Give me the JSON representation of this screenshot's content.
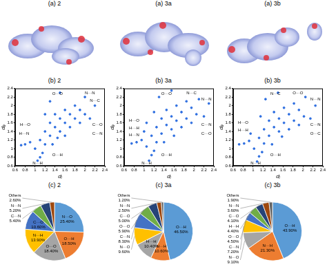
{
  "surfaces": [
    {
      "title": "(a) 2"
    },
    {
      "title": "(a) 3a"
    },
    {
      "title": "(a) 3b"
    }
  ],
  "chart_data": [
    {
      "type": "scatter",
      "title": "(b) 2",
      "x_label": "dᵢ",
      "y_label": "dₑ",
      "xlim": [
        0.6,
        2.4
      ],
      "xticks": [
        0.6,
        0.8,
        1,
        1.2,
        1.4,
        1.6,
        1.8,
        2,
        2.2,
        2.4
      ],
      "ylim": [
        0.6,
        2.4
      ],
      "yticks": [
        0.6,
        0.8,
        1,
        1.2,
        1.4,
        1.6,
        1.8,
        2,
        2.2,
        2.4
      ],
      "grid": false,
      "color": "#2f6fe0",
      "x": [
        0.72,
        0.8,
        0.9,
        1.05,
        1.1,
        1.15,
        1.0,
        1.1,
        1.2,
        1.2,
        1.3,
        1.3,
        1.4,
        1.4,
        1.5,
        1.5,
        1.6,
        1.6,
        1.7,
        1.7,
        1.8,
        1.8,
        1.9,
        1.9,
        2.0,
        2.0,
        2.1,
        2.2,
        1.3,
        1.5,
        1.2,
        1.6,
        1.35,
        1.45
      ],
      "values": [
        1.08,
        1.1,
        1.15,
        0.72,
        0.8,
        0.9,
        1.0,
        1.2,
        1.1,
        1.4,
        1.3,
        1.6,
        1.5,
        1.8,
        1.4,
        1.7,
        1.6,
        1.9,
        1.5,
        1.8,
        1.7,
        2.0,
        1.6,
        1.9,
        1.8,
        2.2,
        1.7,
        2.0,
        2.1,
        2.3,
        1.8,
        1.3,
        1.1,
        1.25
      ],
      "annotations": [
        {
          "text": "O···O",
          "x": 1.45,
          "y": 2.28
        },
        {
          "text": "N···N",
          "x": 2.1,
          "y": 2.3
        },
        {
          "text": "N···C",
          "x": 2.2,
          "y": 2.12
        },
        {
          "text": "H···O",
          "x": 0.8,
          "y": 1.55
        },
        {
          "text": "H···N",
          "x": 0.78,
          "y": 1.35
        },
        {
          "text": "C···O",
          "x": 2.25,
          "y": 1.55
        },
        {
          "text": "C···N",
          "x": 2.25,
          "y": 1.35
        },
        {
          "text": "N···H",
          "x": 1.05,
          "y": 0.66
        },
        {
          "text": "O···H",
          "x": 1.45,
          "y": 0.85
        }
      ]
    },
    {
      "type": "scatter",
      "title": "(b) 3a",
      "x_label": "dᵢ",
      "y_label": "dₑ",
      "xlim": [
        0.6,
        2.4
      ],
      "xticks": [
        0.6,
        0.8,
        1,
        1.2,
        1.4,
        1.6,
        1.8,
        2,
        2.2,
        2.4
      ],
      "ylim": [
        0.6,
        2.4
      ],
      "yticks": [
        0.6,
        0.8,
        1,
        1.2,
        1.4,
        1.6,
        1.8,
        2,
        2.2,
        2.4
      ],
      "grid": false,
      "color": "#2f6fe0",
      "x": [
        0.75,
        0.85,
        0.95,
        1.1,
        1.15,
        1.2,
        1.05,
        1.15,
        1.25,
        1.25,
        1.35,
        1.35,
        1.45,
        1.45,
        1.55,
        1.55,
        1.65,
        1.65,
        1.75,
        1.75,
        1.85,
        1.85,
        1.95,
        1.95,
        2.05,
        2.1,
        2.2,
        2.3,
        1.3,
        1.55,
        1.2,
        1.6,
        1.4,
        1.0,
        1.05
      ],
      "values": [
        1.12,
        1.15,
        1.2,
        0.72,
        0.85,
        0.95,
        1.05,
        1.3,
        1.15,
        1.5,
        1.35,
        1.7,
        1.55,
        1.9,
        1.45,
        1.75,
        1.65,
        2.0,
        1.5,
        1.85,
        1.7,
        2.1,
        1.6,
        1.95,
        1.8,
        2.15,
        1.75,
        2.05,
        2.2,
        2.35,
        1.85,
        1.3,
        1.15,
        1.4,
        1.6
      ],
      "annotations": [
        {
          "text": "O···O",
          "x": 1.45,
          "y": 2.28
        },
        {
          "text": "N···C",
          "x": 1.95,
          "y": 2.3
        },
        {
          "text": "N···N",
          "x": 2.25,
          "y": 2.15
        },
        {
          "text": "H···O",
          "x": 0.8,
          "y": 1.65
        },
        {
          "text": "H···H",
          "x": 0.8,
          "y": 1.48
        },
        {
          "text": "H···N",
          "x": 0.8,
          "y": 1.31
        },
        {
          "text": "C···N",
          "x": 2.25,
          "y": 1.55
        },
        {
          "text": "C···O",
          "x": 2.25,
          "y": 1.35
        },
        {
          "text": "N···H",
          "x": 1.05,
          "y": 0.66
        },
        {
          "text": "O···H",
          "x": 1.45,
          "y": 0.85
        }
      ]
    },
    {
      "type": "scatter",
      "title": "(b) 3b",
      "x_label": "dᵢ",
      "y_label": "dₑ",
      "xlim": [
        0.6,
        2.4
      ],
      "xticks": [
        0.6,
        0.8,
        1,
        1.2,
        1.4,
        1.6,
        1.8,
        2,
        2.2,
        2.4
      ],
      "ylim": [
        0.6,
        2.4
      ],
      "yticks": [
        0.6,
        0.8,
        1,
        1.2,
        1.4,
        1.6,
        1.8,
        2,
        2.2,
        2.4
      ],
      "grid": false,
      "color": "#2f6fe0",
      "x": [
        0.72,
        0.82,
        0.92,
        1.08,
        1.12,
        1.18,
        1.02,
        1.12,
        1.22,
        1.22,
        1.32,
        1.32,
        1.42,
        1.42,
        1.52,
        1.52,
        1.62,
        1.62,
        1.72,
        1.72,
        1.82,
        1.82,
        1.92,
        1.92,
        2.02,
        2.05,
        2.15,
        2.25,
        1.25,
        1.5,
        1.15,
        1.58,
        1.38,
        0.95
      ],
      "values": [
        1.1,
        1.12,
        1.18,
        0.7,
        0.82,
        0.92,
        1.0,
        1.25,
        1.12,
        1.45,
        1.3,
        1.65,
        1.5,
        1.85,
        1.4,
        1.7,
        1.6,
        1.95,
        1.45,
        1.8,
        1.65,
        2.05,
        1.55,
        1.9,
        1.75,
        2.2,
        1.7,
        2.0,
        2.15,
        2.3,
        1.75,
        1.28,
        1.1,
        1.35
      ],
      "annotations": [
        {
          "text": "N···C",
          "x": 1.45,
          "y": 2.28
        },
        {
          "text": "O···O",
          "x": 1.9,
          "y": 2.3
        },
        {
          "text": "N···N",
          "x": 2.25,
          "y": 2.15
        },
        {
          "text": "H···O",
          "x": 0.8,
          "y": 1.6
        },
        {
          "text": "H···H",
          "x": 0.8,
          "y": 1.43
        },
        {
          "text": "C···N",
          "x": 2.25,
          "y": 1.55
        },
        {
          "text": "O···C",
          "x": 2.25,
          "y": 1.35
        },
        {
          "text": "N···H",
          "x": 1.05,
          "y": 0.66
        },
        {
          "text": "O···H",
          "x": 1.45,
          "y": 0.85
        }
      ]
    },
    {
      "type": "pie",
      "title": "(c) 2",
      "data_labels": true,
      "categories": [
        "N···O",
        "O···H",
        "O···O",
        "N···H",
        "C···O",
        "C···N",
        "N···N",
        "Others"
      ],
      "values": [
        25.4,
        18.5,
        18.4,
        13.9,
        10.6,
        5.4,
        5.2,
        2.6
      ],
      "value_labels": [
        "25.40%",
        "18.50%",
        "18.40%",
        "13.90%",
        "10.60%",
        "5.40%",
        "5.20%",
        "2.60%"
      ],
      "colors": [
        "#5b9bd5",
        "#ed7d31",
        "#a5a5a5",
        "#ffc000",
        "#4472c4",
        "#70ad47",
        "#264478",
        "#9e480e"
      ]
    },
    {
      "type": "pie",
      "title": "(c) 3a",
      "data_labels": true,
      "categories": [
        "O···H",
        "N···H",
        "H···H",
        "N···O",
        "C···N",
        "O···O",
        "C···O",
        "N···N",
        "Others"
      ],
      "values": [
        46.5,
        10.6,
        10.4,
        9.6,
        8.3,
        5.9,
        5.0,
        2.5,
        1.2
      ],
      "value_labels": [
        "46.50%",
        "10.60%",
        "10.40%",
        "9.60%",
        "8.30%",
        "5.90%",
        "5.00%",
        "2.50%",
        "1.20%"
      ],
      "colors": [
        "#5b9bd5",
        "#ed7d31",
        "#a5a5a5",
        "#ffc000",
        "#4472c4",
        "#70ad47",
        "#264478",
        "#9e480e",
        "#636363"
      ]
    },
    {
      "type": "pie",
      "title": "(c) 3b",
      "data_labels": true,
      "categories": [
        "O···H",
        "N···H",
        "N···O",
        "C···N",
        "O···O",
        "H···H",
        "C···O",
        "N···N",
        "Others"
      ],
      "values": [
        43.9,
        21.3,
        9.1,
        7.2,
        4.5,
        4.4,
        4.1,
        3.6,
        1.9
      ],
      "value_labels": [
        "43.90%",
        "21.30%",
        "9.10%",
        "7.20%",
        "4.50%",
        "4.40%",
        "4.10%",
        "3.60%",
        "1.90%"
      ],
      "colors": [
        "#5b9bd5",
        "#ed7d31",
        "#a5a5a5",
        "#ffc000",
        "#4472c4",
        "#70ad47",
        "#264478",
        "#9e480e",
        "#636363"
      ]
    }
  ]
}
